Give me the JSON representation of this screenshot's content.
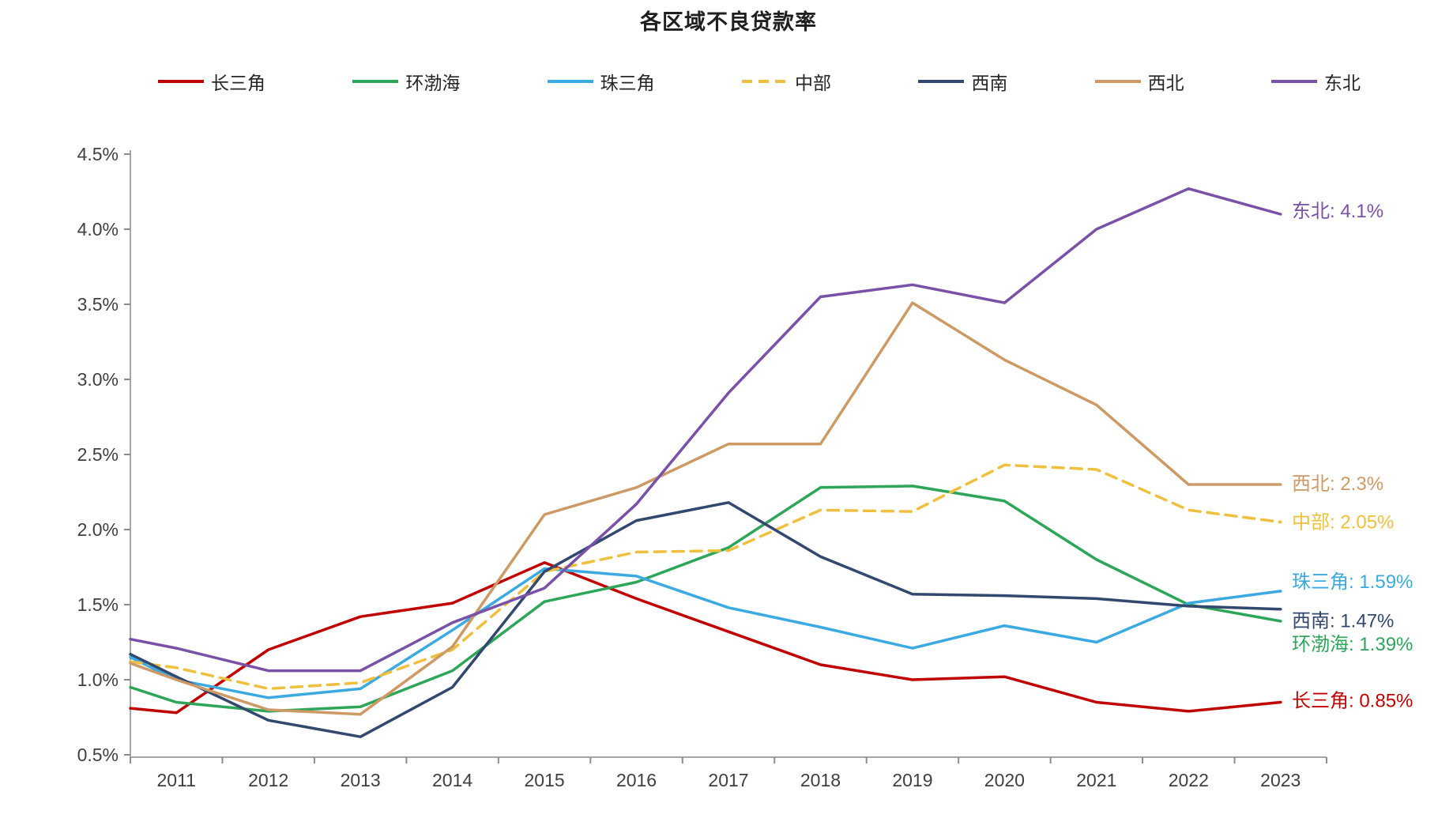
{
  "page": {
    "background": "#ffffff"
  },
  "chart_data": {
    "type": "line",
    "title": "各区域不良贷款率",
    "legend_position": "top",
    "grid": false,
    "x_categories": [
      "2011",
      "2012",
      "2013",
      "2014",
      "2015",
      "2016",
      "2017",
      "2018",
      "2019",
      "2020",
      "2021",
      "2022",
      "2023"
    ],
    "y_axis": {
      "min": 0.5,
      "max": 4.5,
      "step": 0.5,
      "format": "percent",
      "tick_labels": [
        "4.5%",
        "4.0%",
        "3.5%",
        "3.0%",
        "2.5%",
        "2.0%",
        "1.5%",
        "1.0%",
        "0.5%"
      ]
    },
    "series": [
      {
        "name": "长三角",
        "color": "#C00000",
        "dashed": false,
        "start_value": 0.81,
        "values": [
          0.78,
          1.2,
          1.42,
          1.51,
          1.78,
          1.54,
          1.32,
          1.1,
          1.0,
          1.02,
          0.85,
          0.79,
          0.85
        ],
        "end_label": "长三角: 0.85%"
      },
      {
        "name": "环渤海",
        "color": "#2EA659",
        "dashed": false,
        "start_value": 0.95,
        "values": [
          0.85,
          0.79,
          0.82,
          1.06,
          1.52,
          1.65,
          1.88,
          2.28,
          2.29,
          2.19,
          1.8,
          1.5,
          1.39
        ],
        "end_label": "环渤海: 1.39%"
      },
      {
        "name": "珠三角",
        "color": "#3BAAE2",
        "dashed": false,
        "start_value": 1.15,
        "values": [
          1.0,
          0.88,
          0.94,
          1.33,
          1.74,
          1.69,
          1.48,
          1.35,
          1.21,
          1.36,
          1.25,
          1.51,
          1.59
        ],
        "end_label": "珠三角: 1.59%"
      },
      {
        "name": "中部",
        "color": "#EFC03F",
        "dashed": true,
        "start_value": 1.12,
        "values": [
          1.08,
          0.94,
          0.98,
          1.2,
          1.72,
          1.85,
          1.86,
          2.13,
          2.12,
          2.43,
          2.4,
          2.13,
          2.05
        ],
        "end_label": "中部: 2.05%"
      },
      {
        "name": "西南",
        "color": "#33486E",
        "dashed": false,
        "start_value": 1.17,
        "values": [
          1.02,
          0.73,
          0.62,
          0.95,
          1.72,
          2.06,
          2.18,
          1.82,
          1.57,
          1.56,
          1.54,
          1.49,
          1.47
        ],
        "end_label": "西南: 1.47%"
      },
      {
        "name": "西北",
        "color": "#CD9A66",
        "dashed": false,
        "start_value": 1.11,
        "values": [
          1.0,
          0.8,
          0.77,
          1.22,
          2.1,
          2.28,
          2.57,
          2.57,
          3.51,
          3.13,
          2.83,
          2.3,
          2.3
        ],
        "end_label": "西北: 2.3%"
      },
      {
        "name": "东北",
        "color": "#7951A8",
        "dashed": false,
        "start_value": 1.27,
        "values": [
          1.21,
          1.06,
          1.06,
          1.38,
          1.61,
          2.17,
          2.91,
          3.55,
          3.63,
          3.51,
          4.0,
          4.27,
          4.1
        ],
        "end_label": "东北: 4.1%"
      }
    ]
  }
}
